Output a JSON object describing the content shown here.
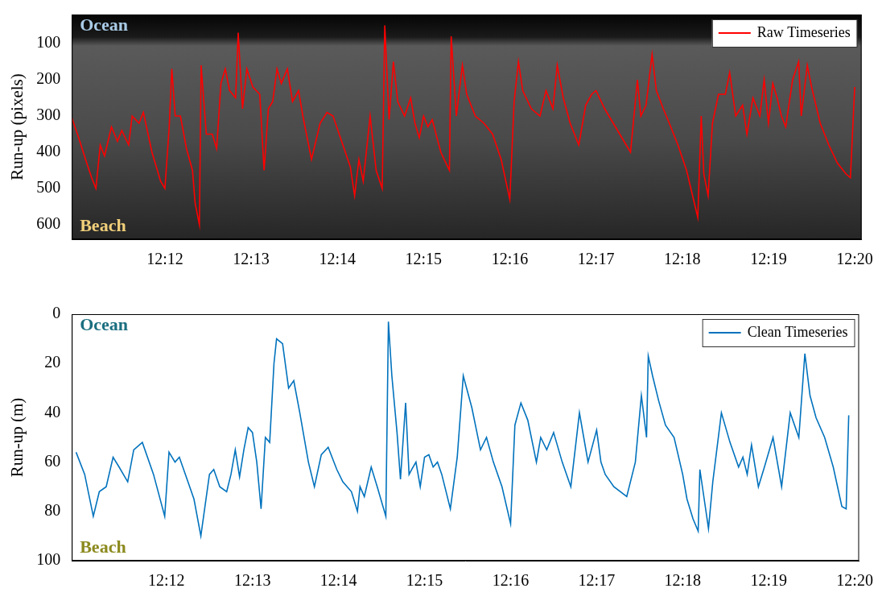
{
  "chart_data": [
    {
      "type": "line",
      "y_label": "Run-up (pixels)",
      "annotations": [
        {
          "text": "Ocean",
          "color": "#a9cbe6"
        },
        {
          "text": "Beach",
          "color": "#f0cf7a"
        }
      ],
      "xlim": [
        730.92,
        740.08
      ],
      "xticks": [
        {
          "value": 732,
          "label": "12:12"
        },
        {
          "value": 733,
          "label": "12:13"
        },
        {
          "value": 734,
          "label": "12:14"
        },
        {
          "value": 735,
          "label": "12:15"
        },
        {
          "value": 736,
          "label": "12:16"
        },
        {
          "value": 737,
          "label": "12:17"
        },
        {
          "value": 738,
          "label": "12:18"
        },
        {
          "value": 739,
          "label": "12:19"
        },
        {
          "value": 740,
          "label": "12:20"
        }
      ],
      "ylim": [
        640,
        20
      ],
      "yticks": [
        100,
        200,
        300,
        400,
        500,
        600
      ],
      "grid": false,
      "legend": "upper right",
      "x": [
        730.92,
        731.0,
        731.08,
        731.15,
        731.2,
        731.25,
        731.3,
        731.38,
        731.45,
        731.5,
        731.58,
        731.62,
        731.7,
        731.75,
        731.85,
        731.95,
        732.0,
        732.05,
        732.08,
        732.12,
        732.18,
        732.25,
        732.32,
        732.35,
        732.4,
        732.42,
        732.48,
        732.55,
        732.6,
        732.65,
        732.7,
        732.75,
        732.82,
        732.85,
        732.9,
        732.95,
        733.02,
        733.1,
        733.15,
        733.2,
        733.25,
        733.3,
        733.35,
        733.42,
        733.48,
        733.55,
        733.6,
        733.7,
        733.8,
        733.88,
        733.95,
        734.05,
        734.15,
        734.2,
        734.25,
        734.3,
        734.38,
        734.45,
        734.52,
        734.55,
        734.6,
        734.65,
        734.7,
        734.78,
        734.85,
        734.9,
        734.95,
        735.0,
        735.05,
        735.1,
        735.2,
        735.3,
        735.32,
        735.38,
        735.45,
        735.5,
        735.6,
        735.7,
        735.8,
        735.9,
        736.0,
        736.05,
        736.1,
        736.15,
        736.25,
        736.35,
        736.42,
        736.5,
        736.55,
        736.62,
        736.7,
        736.8,
        736.88,
        736.95,
        737.0,
        737.1,
        737.2,
        737.3,
        737.4,
        737.48,
        737.52,
        737.58,
        737.65,
        737.7,
        737.78,
        737.85,
        737.95,
        738.05,
        738.15,
        738.18,
        738.22,
        738.25,
        738.3,
        738.35,
        738.42,
        738.5,
        738.55,
        738.62,
        738.7,
        738.75,
        738.82,
        738.9,
        738.95,
        739.0,
        739.05,
        739.1,
        739.15,
        739.2,
        739.28,
        739.35,
        739.38,
        739.45,
        739.5,
        739.6,
        739.7,
        739.8,
        739.9,
        739.95,
        740.0
      ],
      "series": [
        {
          "name": "Raw Timeseries",
          "color": "#ff0000",
          "values": [
            305,
            360,
            420,
            470,
            500,
            380,
            410,
            330,
            370,
            340,
            380,
            300,
            320,
            290,
            400,
            480,
            500,
            330,
            170,
            300,
            300,
            390,
            450,
            540,
            600,
            160,
            350,
            350,
            390,
            210,
            170,
            230,
            250,
            70,
            280,
            170,
            220,
            240,
            450,
            280,
            260,
            170,
            210,
            170,
            260,
            230,
            300,
            420,
            320,
            290,
            300,
            370,
            440,
            520,
            420,
            480,
            300,
            450,
            500,
            50,
            310,
            150,
            260,
            300,
            250,
            320,
            360,
            300,
            330,
            310,
            400,
            450,
            80,
            300,
            160,
            240,
            300,
            320,
            350,
            420,
            530,
            260,
            150,
            230,
            280,
            300,
            230,
            280,
            160,
            250,
            320,
            380,
            270,
            240,
            230,
            280,
            320,
            360,
            400,
            200,
            300,
            270,
            130,
            230,
            280,
            320,
            380,
            450,
            550,
            580,
            300,
            460,
            520,
            320,
            240,
            240,
            180,
            300,
            270,
            350,
            250,
            300,
            200,
            320,
            210,
            250,
            300,
            330,
            200,
            150,
            300,
            160,
            220,
            320,
            380,
            430,
            460,
            470,
            220
          ]
        }
      ]
    },
    {
      "type": "line",
      "y_label": "Run-up (m)",
      "annotations": [
        {
          "text": "Ocean",
          "color": "#1b6f80"
        },
        {
          "text": "Beach",
          "color": "#8c8a1e"
        }
      ],
      "xlim": [
        730.9,
        740.05
      ],
      "xticks": [
        {
          "value": 732,
          "label": "12:12"
        },
        {
          "value": 733,
          "label": "12:13"
        },
        {
          "value": 734,
          "label": "12:14"
        },
        {
          "value": 735,
          "label": "12:15"
        },
        {
          "value": 736,
          "label": "12:16"
        },
        {
          "value": 737,
          "label": "12:17"
        },
        {
          "value": 738,
          "label": "12:18"
        },
        {
          "value": 739,
          "label": "12:19"
        },
        {
          "value": 740,
          "label": "12:20"
        }
      ],
      "ylim": [
        100,
        0
      ],
      "yticks": [
        0,
        20,
        40,
        60,
        80,
        100
      ],
      "grid": false,
      "legend": "upper right",
      "x": [
        730.95,
        731.05,
        731.15,
        731.22,
        731.3,
        731.38,
        731.45,
        731.55,
        731.62,
        731.72,
        731.85,
        731.98,
        732.03,
        732.1,
        732.15,
        732.25,
        732.32,
        732.4,
        732.5,
        732.55,
        732.62,
        732.7,
        732.75,
        732.8,
        732.85,
        732.9,
        732.95,
        733.0,
        733.05,
        733.1,
        733.15,
        733.2,
        733.25,
        733.28,
        733.35,
        733.42,
        733.48,
        733.55,
        733.65,
        733.72,
        733.8,
        733.88,
        733.98,
        734.05,
        734.15,
        734.22,
        734.25,
        734.3,
        734.38,
        734.45,
        734.55,
        734.58,
        734.62,
        734.68,
        734.72,
        734.78,
        734.82,
        734.85,
        734.9,
        734.95,
        735.0,
        735.05,
        735.1,
        735.15,
        735.2,
        735.3,
        735.38,
        735.45,
        735.55,
        735.65,
        735.72,
        735.8,
        735.9,
        736.0,
        736.05,
        736.12,
        736.2,
        736.3,
        736.35,
        736.42,
        736.5,
        736.6,
        736.7,
        736.8,
        736.85,
        736.9,
        737.0,
        737.05,
        737.1,
        737.2,
        737.35,
        737.45,
        737.52,
        737.58,
        737.6,
        737.65,
        737.72,
        737.8,
        737.9,
        738.0,
        738.05,
        738.12,
        738.18,
        738.2,
        738.25,
        738.3,
        738.35,
        738.45,
        738.55,
        738.65,
        738.7,
        738.75,
        738.8,
        738.88,
        738.95,
        739.05,
        739.15,
        739.25,
        739.35,
        739.42,
        739.48,
        739.55,
        739.65,
        739.75,
        739.85,
        739.9,
        739.93
      ],
      "series": [
        {
          "name": "Clean Timeseries",
          "color": "#0072bd",
          "values": [
            56,
            65,
            82,
            72,
            70,
            58,
            62,
            68,
            55,
            52,
            65,
            82,
            56,
            60,
            58,
            68,
            75,
            90,
            65,
            63,
            70,
            72,
            65,
            55,
            66,
            55,
            46,
            48,
            60,
            79,
            50,
            52,
            20,
            10,
            12,
            30,
            27,
            40,
            60,
            70,
            57,
            54,
            63,
            68,
            72,
            80,
            70,
            74,
            62,
            70,
            82,
            3,
            25,
            48,
            67,
            36,
            65,
            63,
            60,
            70,
            58,
            57,
            62,
            60,
            65,
            79,
            58,
            25,
            38,
            55,
            50,
            60,
            70,
            85,
            45,
            36,
            43,
            60,
            50,
            55,
            48,
            60,
            70,
            40,
            50,
            60,
            47,
            60,
            65,
            70,
            74,
            60,
            33,
            50,
            17,
            25,
            35,
            45,
            50,
            65,
            75,
            83,
            88,
            63,
            75,
            87,
            68,
            40,
            52,
            62,
            58,
            65,
            53,
            70,
            62,
            50,
            70,
            40,
            50,
            16,
            33,
            42,
            50,
            62,
            78,
            79,
            41
          ]
        }
      ]
    }
  ]
}
